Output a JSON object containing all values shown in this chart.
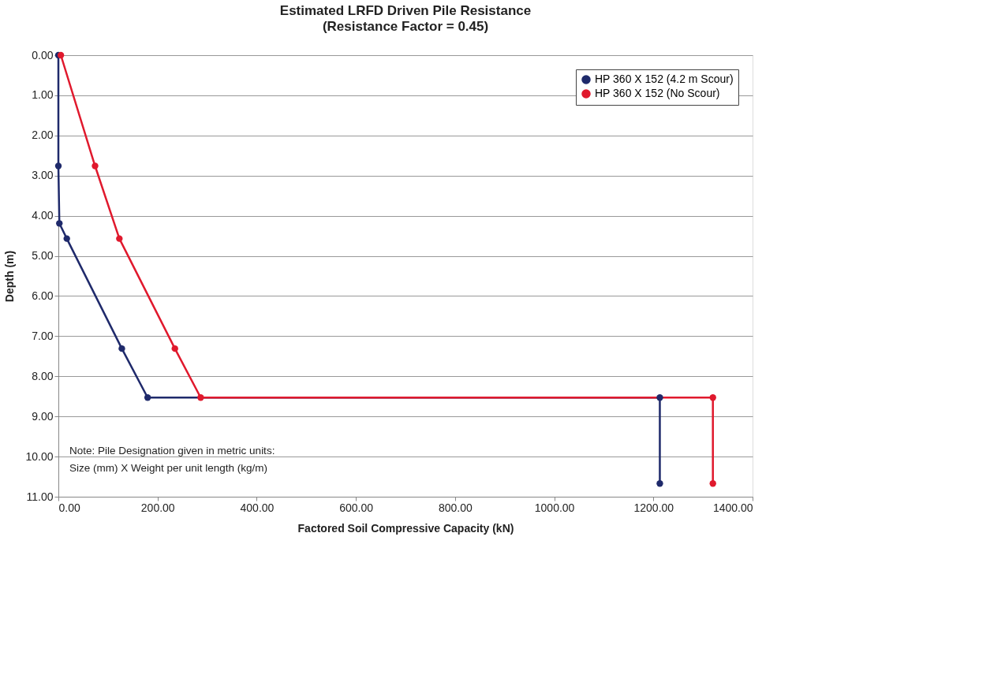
{
  "chart_data": {
    "type": "line",
    "title": "Estimated LRFD Driven Pile Resistance",
    "subtitle": "(Resistance Factor = 0.45)",
    "xlabel": "Factored Soil Compressive Capacity (kN)",
    "ylabel": "Depth (m)",
    "series": [
      {
        "name": "HP 360 X 152 (4.2 m Scour)",
        "color": "#1f2a6b",
        "x": [
          0,
          0,
          2,
          17,
          128,
          180,
          1213,
          1213
        ],
        "values": [
          0,
          2.76,
          4.19,
          4.57,
          7.31,
          8.53,
          8.53,
          10.67
        ]
      },
      {
        "name": "HP 360 X 152 (No Scour)",
        "color": "#e0192d",
        "x": [
          5,
          74,
          123,
          235,
          287,
          1320,
          1320
        ],
        "values": [
          0,
          2.76,
          4.57,
          7.31,
          8.53,
          8.53,
          10.67
        ]
      }
    ],
    "xlim": [
      0,
      1400
    ],
    "ylim": [
      11,
      0
    ],
    "xticks": [
      {
        "value": 0,
        "label": "0.00"
      },
      {
        "value": 200,
        "label": "200.00"
      },
      {
        "value": 400,
        "label": "400.00"
      },
      {
        "value": 600,
        "label": "600.00"
      },
      {
        "value": 800,
        "label": "800.00"
      },
      {
        "value": 1000,
        "label": "1000.00"
      },
      {
        "value": 1200,
        "label": "1200.00"
      },
      {
        "value": 1400,
        "label": "1400.00"
      }
    ],
    "yticks": [
      {
        "value": 0,
        "label": "0.00"
      },
      {
        "value": 1,
        "label": "1.00"
      },
      {
        "value": 2,
        "label": "2.00"
      },
      {
        "value": 3,
        "label": "3.00"
      },
      {
        "value": 4,
        "label": "4.00"
      },
      {
        "value": 5,
        "label": "5.00"
      },
      {
        "value": 6,
        "label": "6.00"
      },
      {
        "value": 7,
        "label": "7.00"
      },
      {
        "value": 8,
        "label": "8.00"
      },
      {
        "value": 9,
        "label": "9.00"
      },
      {
        "value": 10,
        "label": "10.00"
      },
      {
        "value": 11,
        "label": "11.00"
      }
    ],
    "annotations": [
      "Note: Pile Designation given in metric units:",
      "Size (mm)  X  Weight per unit length (kg/m)"
    ],
    "grid": "y",
    "legend": "top right",
    "marker": "circle",
    "line_style": "solid"
  }
}
